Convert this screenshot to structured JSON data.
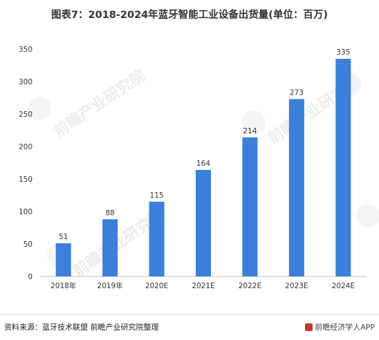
{
  "title": "图表7：2018-2024年蓝牙智能工业设备出货量(单位：百万)",
  "source": "资料来源：蓝牙技术联盟 前瞻产业研究院整理",
  "app_label": "前瞻经济学人APP",
  "watermark": "前瞻产业研究院",
  "colors": {
    "bar": "#3b7fdb",
    "axis": "#bfbfbf",
    "text": "#333333"
  },
  "chart_data": {
    "type": "bar",
    "title": "图表7：2018-2024年蓝牙智能工业设备出货量(单位：百万)",
    "xlabel": "",
    "ylabel": "",
    "categories": [
      "2018年",
      "2019年",
      "2020E",
      "2021E",
      "2022E",
      "2023E",
      "2024E"
    ],
    "values": [
      51,
      88,
      115,
      164,
      214,
      273,
      335
    ],
    "ylim": [
      0,
      350
    ],
    "yticks": [
      0,
      50,
      100,
      150,
      200,
      250,
      300,
      350
    ],
    "grid": false,
    "data_labels": true
  }
}
